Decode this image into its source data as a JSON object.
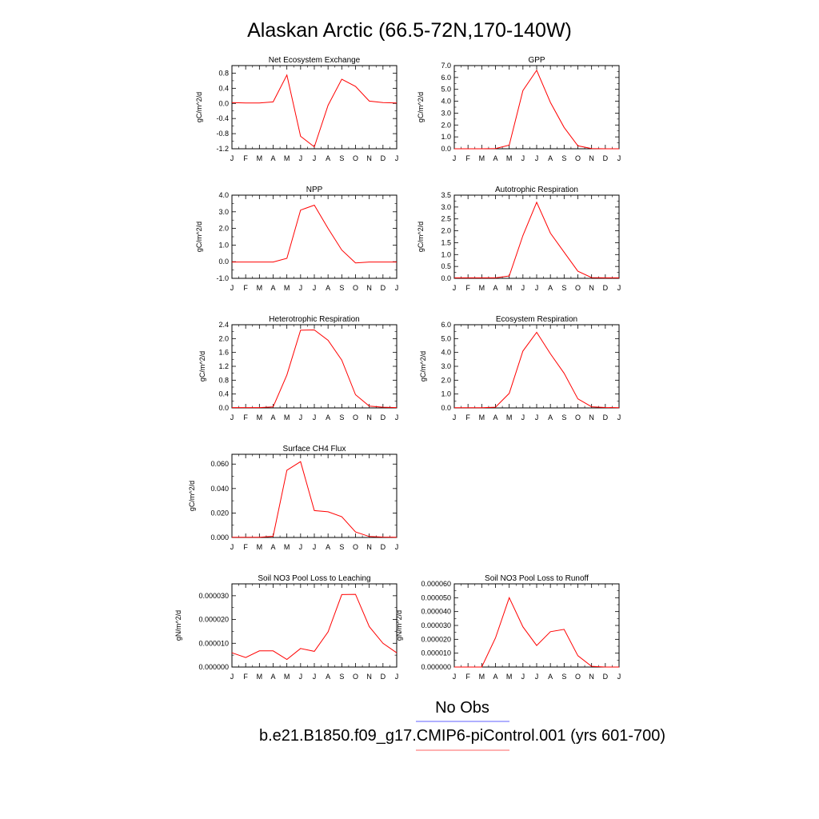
{
  "figure": {
    "title": "Alaskan Arctic (66.5-72N,170-140W)",
    "months": [
      "J",
      "F",
      "M",
      "A",
      "M",
      "J",
      "J",
      "A",
      "S",
      "O",
      "N",
      "D",
      "J"
    ],
    "legend": [
      {
        "label": "No Obs",
        "color": "#8080ff"
      },
      {
        "label": "b.e21.B1850.f09_g17.CMIP6-piControl.001 (yrs 601-700)",
        "color": "#ff8080"
      }
    ],
    "line_color": "#ff0000"
  },
  "chart_data": [
    {
      "type": "line",
      "title": "Net Ecosystem Exchange",
      "ylabel": "gC/m^2/d",
      "ylim": [
        -1.2,
        1.0
      ],
      "yticks": [
        -1.2,
        -0.8,
        -0.4,
        0.0,
        0.4,
        0.8
      ],
      "ytick_labels": [
        "-1.2",
        "-0.8",
        "-0.4",
        "0.0",
        "0.4",
        "0.8"
      ],
      "values": [
        0.02,
        0.01,
        0.01,
        0.04,
        0.75,
        -0.87,
        -1.15,
        -0.05,
        0.64,
        0.45,
        0.06,
        0.02,
        0.01
      ]
    },
    {
      "type": "line",
      "title": "GPP",
      "ylabel": "gC/m^2/d",
      "ylim": [
        0.0,
        7.0
      ],
      "yticks": [
        0.0,
        1.0,
        2.0,
        3.0,
        4.0,
        5.0,
        6.0,
        7.0
      ],
      "ytick_labels": [
        "0.0",
        "1.0",
        "2.0",
        "3.0",
        "4.0",
        "5.0",
        "6.0",
        "7.0"
      ],
      "values": [
        0.0,
        0.0,
        0.0,
        0.02,
        0.3,
        4.9,
        6.6,
        3.9,
        1.8,
        0.25,
        0.02,
        0.0,
        0.0
      ]
    },
    {
      "type": "line",
      "title": "NPP",
      "ylabel": "gC/m^2/d",
      "ylim": [
        -1.0,
        4.0
      ],
      "yticks": [
        -1.0,
        0.0,
        1.0,
        2.0,
        3.0,
        4.0
      ],
      "ytick_labels": [
        "-1.0",
        "0.0",
        "1.0",
        "2.0",
        "3.0",
        "4.0"
      ],
      "values": [
        -0.02,
        -0.02,
        -0.02,
        -0.02,
        0.2,
        3.1,
        3.4,
        2.0,
        0.7,
        -0.07,
        -0.02,
        -0.02,
        -0.02
      ]
    },
    {
      "type": "line",
      "title": "Autotrophic Respiration",
      "ylabel": "gC/m^2/d",
      "ylim": [
        0.0,
        3.5
      ],
      "yticks": [
        0.0,
        0.5,
        1.0,
        1.5,
        2.0,
        2.5,
        3.0,
        3.5
      ],
      "ytick_labels": [
        "0.0",
        "0.5",
        "1.0",
        "1.5",
        "2.0",
        "2.5",
        "3.0",
        "3.5"
      ],
      "values": [
        0.02,
        0.02,
        0.02,
        0.02,
        0.1,
        1.8,
        3.2,
        1.9,
        1.1,
        0.3,
        0.03,
        0.02,
        0.02
      ]
    },
    {
      "type": "line",
      "title": "Heterotrophic Respiration",
      "ylabel": "gC/m^2/d",
      "ylim": [
        0.0,
        2.4
      ],
      "yticks": [
        0.0,
        0.4,
        0.8,
        1.2,
        1.6,
        2.0,
        2.4
      ],
      "ytick_labels": [
        "0.0",
        "0.4",
        "0.8",
        "1.2",
        "1.6",
        "2.0",
        "2.4"
      ],
      "values": [
        0.01,
        0.01,
        0.01,
        0.03,
        0.95,
        2.24,
        2.25,
        1.95,
        1.38,
        0.38,
        0.05,
        0.02,
        0.01
      ]
    },
    {
      "type": "line",
      "title": "Ecosystem Respiration",
      "ylabel": "gC/m^2/d",
      "ylim": [
        0.0,
        6.0
      ],
      "yticks": [
        0.0,
        1.0,
        2.0,
        3.0,
        4.0,
        5.0,
        6.0
      ],
      "ytick_labels": [
        "0.0",
        "1.0",
        "2.0",
        "3.0",
        "4.0",
        "5.0",
        "6.0"
      ],
      "values": [
        0.02,
        0.02,
        0.02,
        0.05,
        1.05,
        4.1,
        5.45,
        3.9,
        2.5,
        0.65,
        0.08,
        0.03,
        0.02
      ]
    },
    {
      "type": "line",
      "title": "Surface CH4 Flux",
      "ylabel": "gC/m^2/d",
      "ylim": [
        0.0,
        0.068
      ],
      "yticks": [
        0.0,
        0.02,
        0.04,
        0.06
      ],
      "ytick_labels": [
        "0.000",
        "0.020",
        "0.040",
        "0.060"
      ],
      "values": [
        0.0002,
        0.0002,
        0.0002,
        0.001,
        0.055,
        0.062,
        0.022,
        0.021,
        0.017,
        0.0045,
        0.0008,
        0.0003,
        0.0002
      ]
    },
    null,
    {
      "type": "line",
      "title": "Soil NO3 Pool Loss to Leaching",
      "ylabel": "gN/m^2/d",
      "ylim": [
        0.0,
        3.5e-05
      ],
      "yticks": [
        0.0,
        1e-05,
        2e-05,
        3e-05
      ],
      "ytick_labels": [
        "0.000000",
        "0.000010",
        "0.000020",
        "0.000030"
      ],
      "values": [
        6e-06,
        4e-06,
        6.8e-06,
        6.8e-06,
        3.2e-06,
        7.8e-06,
        6.6e-06,
        1.48e-05,
        3.05e-05,
        3.06e-05,
        1.7e-05,
        1e-05,
        6e-06
      ]
    },
    {
      "type": "line",
      "title": "Soil NO3 Pool Loss to Runoff",
      "ylabel": "gN/m^2/d",
      "ylim": [
        0.0,
        6e-05
      ],
      "yticks": [
        0.0,
        1e-05,
        2e-05,
        3e-05,
        4e-05,
        5e-05,
        6e-05
      ],
      "ytick_labels": [
        "0.000000",
        "0.000010",
        "0.000020",
        "0.000030",
        "0.000040",
        "0.000050",
        "0.000060"
      ],
      "values": [
        0.0,
        0.0,
        0.0,
        2.1e-05,
        5e-05,
        2.9e-05,
        1.55e-05,
        2.55e-05,
        2.72e-05,
        8.2e-06,
        5e-07,
        0.0,
        0.0
      ]
    }
  ]
}
